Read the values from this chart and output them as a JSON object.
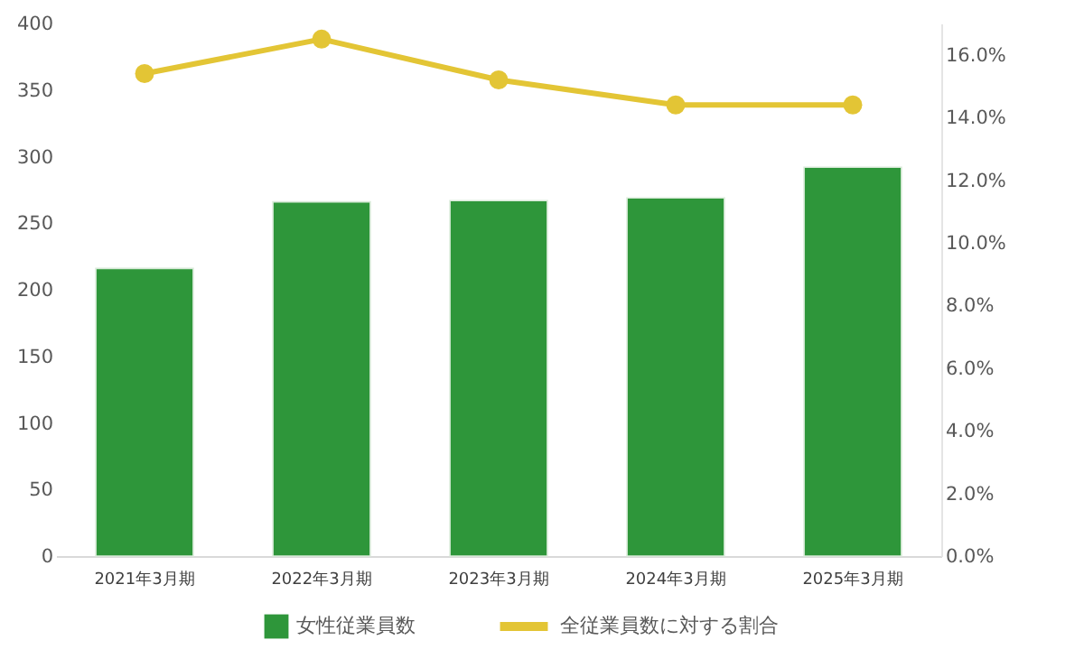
{
  "chart_data": {
    "type": "bar",
    "categories": [
      "2021年3月期",
      "2022年3月期",
      "2023年3月期",
      "2024年3月期",
      "2025年3月期"
    ],
    "series": [
      {
        "name": "女性従業員数",
        "color": "#2e963a",
        "values": [
          216,
          266,
          267,
          269,
          292
        ]
      },
      {
        "name": "全従業員数に対する割合",
        "type": "line",
        "axis": "y2",
        "color": "#e3c535",
        "values": [
          15.4,
          16.5,
          15.2,
          14.4,
          14.4
        ]
      }
    ],
    "ylim": [
      0,
      400
    ],
    "yticks": [
      0,
      50,
      100,
      150,
      200,
      250,
      300,
      350,
      400
    ],
    "y2lim": [
      0,
      17
    ],
    "y2ticks": [
      {
        "value": 0,
        "label": "0.0%"
      },
      {
        "value": 2,
        "label": "2.0%"
      },
      {
        "value": 4,
        "label": "4.0%"
      },
      {
        "value": 6,
        "label": "6.0%"
      },
      {
        "value": 8,
        "label": "8.0%"
      },
      {
        "value": 10,
        "label": "10.0%"
      },
      {
        "value": 12,
        "label": "12.0%"
      },
      {
        "value": 14,
        "label": "14.0%"
      },
      {
        "value": 16,
        "label": "16.0%"
      }
    ],
    "grid": false,
    "legend": "bottom",
    "marker": "circle",
    "line_style": "solid"
  }
}
